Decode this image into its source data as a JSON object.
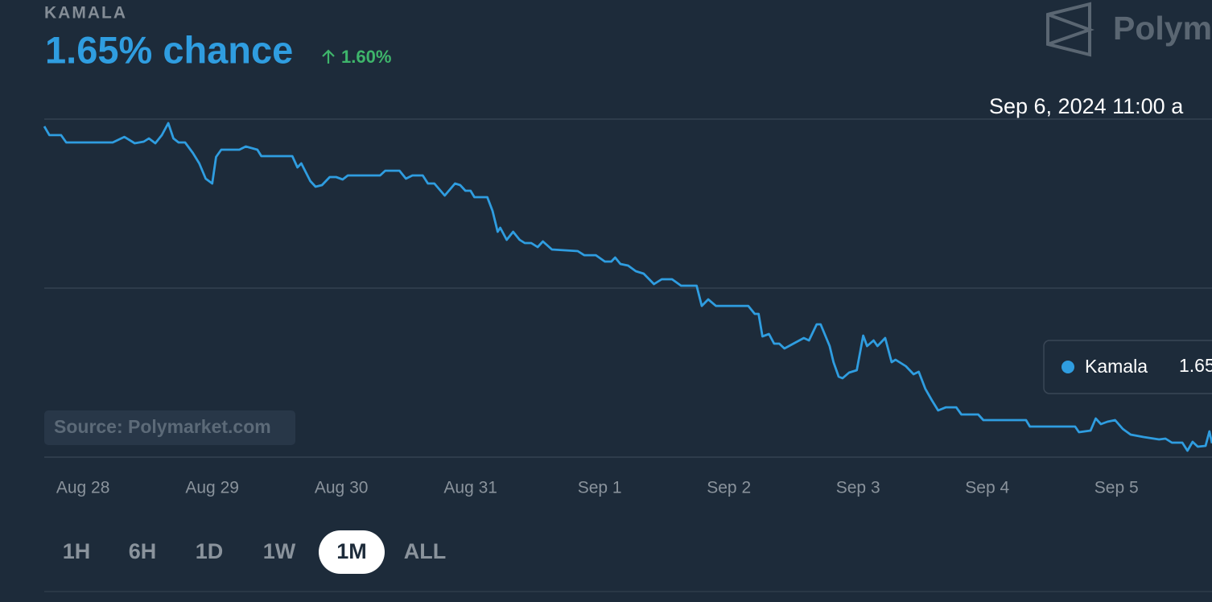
{
  "header": {
    "market": "KAMALA",
    "chance": "1.65% chance",
    "change": "1.60%",
    "logo": "Polym"
  },
  "chart_data": {
    "type": "line",
    "x": [
      -0.3,
      -0.26,
      -0.17,
      -0.13,
      0.23,
      0.32,
      0.4,
      0.47,
      0.51,
      0.56,
      0.61,
      0.66,
      0.7,
      0.74,
      0.79,
      0.85,
      0.9,
      0.95,
      1.0,
      1.03,
      1.07,
      1.21,
      1.26,
      1.35,
      1.38,
      1.62,
      1.66,
      1.69,
      1.76,
      1.8,
      1.85,
      1.91,
      1.96,
      2.01,
      2.05,
      2.3,
      2.34,
      2.45,
      2.5,
      2.55,
      2.63,
      2.67,
      2.72,
      2.8,
      2.88,
      2.92,
      2.96,
      3.0,
      3.03,
      3.13,
      3.17,
      3.21,
      3.23,
      3.28,
      3.33,
      3.38,
      3.42,
      3.47,
      3.52,
      3.56,
      3.63,
      3.83,
      3.88,
      3.97,
      4.04,
      4.09,
      4.12,
      4.16,
      4.22,
      4.28,
      4.34,
      4.42,
      4.48,
      4.56,
      4.63,
      4.75,
      4.79,
      4.84,
      4.9,
      5.15,
      5.2,
      5.23,
      5.26,
      5.31,
      5.35,
      5.39,
      5.43,
      5.58,
      5.62,
      5.68,
      5.71,
      5.78,
      5.81,
      5.85,
      5.88,
      5.93,
      5.99,
      6.04,
      6.07,
      6.12,
      6.15,
      6.21,
      6.26,
      6.29,
      6.37,
      6.4,
      6.43,
      6.47,
      6.52,
      6.57,
      6.62,
      6.68,
      6.76,
      6.8,
      6.93,
      6.97,
      7.3,
      7.33,
      7.68,
      7.71,
      7.8,
      7.84,
      7.88,
      7.93,
      7.99,
      8.05,
      8.11,
      8.21,
      8.33,
      8.38,
      8.43,
      8.51,
      8.55,
      8.59,
      8.63,
      8.69,
      8.72,
      8.74
    ],
    "series": [
      {
        "name": "Kamala",
        "color": "#2f9de0",
        "values": [
          39.14,
          38.1,
          38.1,
          37.24,
          37.24,
          37.9,
          37.14,
          37.33,
          37.71,
          37.14,
          38.1,
          39.52,
          37.71,
          37.24,
          37.24,
          36.0,
          34.76,
          32.95,
          32.38,
          35.52,
          36.38,
          36.38,
          36.76,
          36.38,
          35.62,
          35.62,
          34.29,
          34.76,
          32.67,
          32.0,
          32.19,
          33.14,
          33.14,
          32.86,
          33.33,
          33.33,
          33.9,
          33.9,
          32.95,
          33.33,
          33.33,
          32.38,
          32.38,
          30.95,
          32.38,
          32.19,
          31.52,
          31.52,
          30.76,
          30.76,
          29.14,
          26.67,
          27.14,
          25.71,
          26.67,
          25.71,
          25.33,
          25.33,
          24.86,
          25.52,
          24.57,
          24.38,
          23.9,
          23.9,
          23.14,
          23.14,
          23.62,
          22.86,
          22.67,
          22.0,
          21.71,
          20.48,
          21.05,
          21.05,
          20.29,
          20.29,
          17.9,
          18.67,
          17.9,
          17.9,
          16.95,
          16.95,
          14.29,
          14.57,
          13.43,
          13.43,
          12.86,
          14.1,
          13.81,
          15.71,
          15.71,
          13.14,
          11.24,
          9.52,
          9.33,
          10.0,
          10.29,
          14.38,
          13.14,
          13.81,
          13.14,
          14.1,
          11.24,
          11.52,
          10.76,
          10.29,
          9.81,
          10.1,
          8.1,
          6.76,
          5.52,
          5.9,
          5.9,
          5.05,
          5.05,
          4.38,
          4.38,
          3.62,
          3.62,
          2.95,
          3.14,
          4.57,
          3.9,
          4.19,
          4.38,
          3.33,
          2.67,
          2.38,
          2.1,
          2.19,
          1.71,
          1.71,
          0.76,
          1.81,
          1.24,
          1.33,
          3.05,
          1.65
        ]
      }
    ],
    "xlim": [
      -0.3,
      8.74
    ],
    "xticks": [
      {
        "value": 0,
        "label": "Aug 28"
      },
      {
        "value": 1,
        "label": "Aug 29"
      },
      {
        "value": 2,
        "label": "Aug 30"
      },
      {
        "value": 3,
        "label": "Aug 31"
      },
      {
        "value": 4,
        "label": "Sep 1"
      },
      {
        "value": 5,
        "label": "Sep 2"
      },
      {
        "value": 6,
        "label": "Sep 3"
      },
      {
        "value": 7,
        "label": "Sep 4"
      },
      {
        "value": 8,
        "label": "Sep 5"
      }
    ],
    "ylim": [
      0,
      40
    ],
    "yticks": [
      0,
      20,
      40
    ],
    "grid": true
  },
  "tooltip": {
    "time": "Sep 6, 2024 11:00 a",
    "value": "1.65"
  },
  "source": "Source: Polymarket.com",
  "ranges": [
    "1H",
    "6H",
    "1D",
    "1W",
    "1M",
    "ALL"
  ],
  "active_range": 4
}
